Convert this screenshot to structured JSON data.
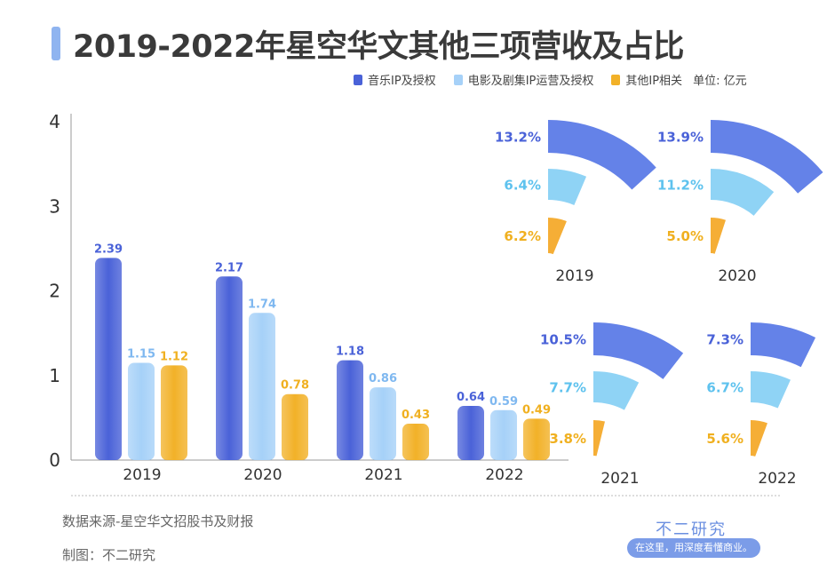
{
  "title": "2019-2022年星空华文其他三项营收及占比",
  "legend": {
    "unit": "单位: 亿元"
  },
  "footer": {
    "source": "数据来源-星空华文招股书及财报",
    "maker": "制图：不二研究",
    "logo": "不二研究",
    "slogan": "在这里，用深度看懂商业。"
  },
  "chart_data": [
    {
      "type": "bar",
      "categories": [
        "2019",
        "2020",
        "2021",
        "2022"
      ],
      "ylim": [
        0,
        4
      ],
      "yticks": [
        "0",
        "1",
        "2",
        "3",
        "4"
      ],
      "grid": false,
      "series": [
        {
          "name": "音乐IP及授权",
          "color": "#4a62d8",
          "values": [
            2.39,
            2.17,
            1.18,
            0.64
          ]
        },
        {
          "name": "电影及剧集IP运营及授权",
          "color": "#a6d1f8",
          "values": [
            1.15,
            1.74,
            0.86,
            0.59
          ]
        },
        {
          "name": "其他IP相关",
          "color": "#f2b128",
          "values": [
            1.12,
            0.78,
            0.43,
            0.49
          ]
        }
      ]
    },
    {
      "type": "radial-bar",
      "categories": [
        "2019",
        "2020",
        "2021",
        "2022"
      ],
      "series": [
        {
          "name": "音乐IP及授权",
          "color": "#6482e8",
          "label_color": "#4a62d8",
          "values": [
            "13.2%",
            "13.9%",
            "10.5%",
            "7.3%"
          ]
        },
        {
          "name": "电影及剧集IP运营及授权",
          "color": "#8fd3f5",
          "label_color": "#5ec2ee",
          "values": [
            "6.4%",
            "11.2%",
            "7.7%",
            "6.7%"
          ]
        },
        {
          "name": "其他IP相关",
          "color": "#f5ae36",
          "label_color": "#f0b020",
          "values": [
            "6.2%",
            "5.0%",
            "3.8%",
            "5.6%"
          ]
        }
      ]
    }
  ]
}
